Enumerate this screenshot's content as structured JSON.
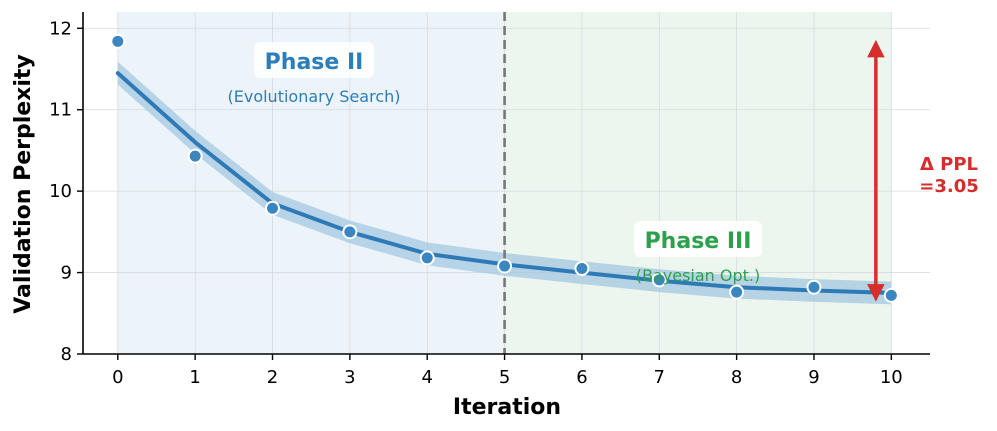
{
  "chart_data": {
    "type": "line",
    "xlabel": "Iteration",
    "ylabel": "Validation Perplexity",
    "xlim": [
      -0.45,
      10.5
    ],
    "ylim": [
      8,
      12.2
    ],
    "x_ticks": [
      0,
      1,
      2,
      3,
      4,
      5,
      6,
      7,
      8,
      9,
      10
    ],
    "y_ticks": [
      8,
      9,
      10,
      11,
      12
    ],
    "grid": true,
    "series": [
      {
        "kind": "fit-line",
        "x": [
          0,
          1,
          2,
          3,
          4,
          5,
          6,
          7,
          8,
          9,
          10
        ],
        "values": [
          11.45,
          10.6,
          9.85,
          9.5,
          9.23,
          9.1,
          9.0,
          8.9,
          8.82,
          8.78,
          8.75
        ],
        "band_halfwidth": 0.14
      },
      {
        "kind": "points",
        "x": [
          0,
          1,
          2,
          3,
          4,
          5,
          6,
          7,
          8,
          9,
          10
        ],
        "values": [
          11.84,
          10.43,
          9.79,
          9.5,
          9.18,
          9.08,
          9.05,
          8.91,
          8.76,
          8.82,
          8.72
        ]
      }
    ],
    "phases": [
      {
        "title": "Phase II",
        "subtitle": "(Evolutionary Search)",
        "x_start": 0,
        "x_end": 5
      },
      {
        "title": "Phase III",
        "subtitle": "(Bayesian Opt.)",
        "x_start": 5,
        "x_end": 10
      }
    ],
    "divider_x": 5,
    "delta_annotation": {
      "line1": "Δ PPL",
      "line2": "=3.05",
      "x": 9.8,
      "y_top": 11.75,
      "y_bottom": 8.75
    },
    "colors": {
      "line": "#2e7ab6",
      "band": "#9ec4e0",
      "point": "#3a86c0",
      "phase2_bg": "#edf4f9",
      "phase3_bg": "#edf6ee",
      "phase2_text": "#2d7db8",
      "phase3_text": "#2ca04c",
      "divider": "#777777",
      "delta": "#d62d2d"
    }
  }
}
